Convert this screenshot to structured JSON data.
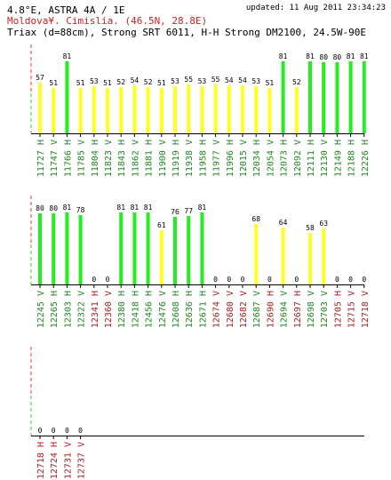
{
  "header": {
    "title": "4.8°E, ASTRA 4A / 1E",
    "updated": "updated: 11 Aug 2011 23:34:23",
    "location": "Moldova¥. Cimislia.  (46.5N, 28.8E)",
    "setup": "Triax (d=88cm), Strong SRT 6011, H-H Strong DM2100, 24.5W-90E"
  },
  "colors": {
    "green": "#22ee22",
    "yellow": "#ffff22",
    "label_green": "#228822",
    "label_red": "#aa2222",
    "value_text": "#000000",
    "axis": "#000000",
    "dash_red": "#ff3333",
    "dash_green": "#33cc33"
  },
  "chart_data": [
    {
      "type": "bar",
      "ylim": [
        0,
        100
      ],
      "bars": [
        {
          "freq": "11727",
          "pol": "H",
          "value": 57,
          "color": "yellow",
          "label_color": "green"
        },
        {
          "freq": "11747",
          "pol": "V",
          "value": 51,
          "color": "yellow",
          "label_color": "green"
        },
        {
          "freq": "11766",
          "pol": "H",
          "value": 81,
          "color": "green",
          "label_color": "green"
        },
        {
          "freq": "11785",
          "pol": "V",
          "value": 51,
          "color": "yellow",
          "label_color": "green"
        },
        {
          "freq": "11804",
          "pol": "H",
          "value": 53,
          "color": "yellow",
          "label_color": "green"
        },
        {
          "freq": "11823",
          "pol": "V",
          "value": 51,
          "color": "yellow",
          "label_color": "green"
        },
        {
          "freq": "11843",
          "pol": "H",
          "value": 52,
          "color": "yellow",
          "label_color": "green"
        },
        {
          "freq": "11862",
          "pol": "V",
          "value": 54,
          "color": "yellow",
          "label_color": "green"
        },
        {
          "freq": "11881",
          "pol": "H",
          "value": 52,
          "color": "yellow",
          "label_color": "green"
        },
        {
          "freq": "11900",
          "pol": "V",
          "value": 51,
          "color": "yellow",
          "label_color": "green"
        },
        {
          "freq": "11919",
          "pol": "H",
          "value": 53,
          "color": "yellow",
          "label_color": "green"
        },
        {
          "freq": "11938",
          "pol": "V",
          "value": 55,
          "color": "yellow",
          "label_color": "green"
        },
        {
          "freq": "11958",
          "pol": "H",
          "value": 53,
          "color": "yellow",
          "label_color": "green"
        },
        {
          "freq": "11977",
          "pol": "V",
          "value": 55,
          "color": "yellow",
          "label_color": "green"
        },
        {
          "freq": "11996",
          "pol": "H",
          "value": 54,
          "color": "yellow",
          "label_color": "green"
        },
        {
          "freq": "12015",
          "pol": "V",
          "value": 54,
          "color": "yellow",
          "label_color": "green"
        },
        {
          "freq": "12034",
          "pol": "H",
          "value": 53,
          "color": "yellow",
          "label_color": "green"
        },
        {
          "freq": "12054",
          "pol": "V",
          "value": 51,
          "color": "yellow",
          "label_color": "green"
        },
        {
          "freq": "12073",
          "pol": "H",
          "value": 81,
          "color": "green",
          "label_color": "green"
        },
        {
          "freq": "12092",
          "pol": "V",
          "value": 52,
          "color": "yellow",
          "label_color": "green"
        },
        {
          "freq": "12111",
          "pol": "H",
          "value": 81,
          "color": "green",
          "label_color": "green"
        },
        {
          "freq": "12130",
          "pol": "V",
          "value": 80,
          "color": "green",
          "label_color": "green"
        },
        {
          "freq": "12149",
          "pol": "H",
          "value": 80,
          "color": "green",
          "label_color": "green"
        },
        {
          "freq": "12188",
          "pol": "H",
          "value": 81,
          "color": "green",
          "label_color": "green"
        },
        {
          "freq": "12226",
          "pol": "H",
          "value": 81,
          "color": "green",
          "label_color": "green"
        }
      ]
    },
    {
      "type": "bar",
      "ylim": [
        0,
        100
      ],
      "bars": [
        {
          "freq": "12245",
          "pol": "V",
          "value": 80,
          "color": "green",
          "label_color": "green"
        },
        {
          "freq": "12265",
          "pol": "H",
          "value": 80,
          "color": "green",
          "label_color": "green"
        },
        {
          "freq": "12303",
          "pol": "H",
          "value": 81,
          "color": "green",
          "label_color": "green"
        },
        {
          "freq": "12322",
          "pol": "V",
          "value": 78,
          "color": "green",
          "label_color": "green"
        },
        {
          "freq": "12341",
          "pol": "H",
          "value": 0,
          "color": "green",
          "label_color": "red"
        },
        {
          "freq": "12360",
          "pol": "V",
          "value": 0,
          "color": "green",
          "label_color": "red"
        },
        {
          "freq": "12380",
          "pol": "H",
          "value": 81,
          "color": "green",
          "label_color": "green"
        },
        {
          "freq": "12418",
          "pol": "H",
          "value": 81,
          "color": "green",
          "label_color": "green"
        },
        {
          "freq": "12456",
          "pol": "H",
          "value": 81,
          "color": "green",
          "label_color": "green"
        },
        {
          "freq": "12476",
          "pol": "V",
          "value": 61,
          "color": "yellow",
          "label_color": "green"
        },
        {
          "freq": "12608",
          "pol": "H",
          "value": 76,
          "color": "green",
          "label_color": "green"
        },
        {
          "freq": "12636",
          "pol": "H",
          "value": 77,
          "color": "green",
          "label_color": "green"
        },
        {
          "freq": "12671",
          "pol": "H",
          "value": 81,
          "color": "green",
          "label_color": "green"
        },
        {
          "freq": "12674",
          "pol": "V",
          "value": 0,
          "color": "green",
          "label_color": "red"
        },
        {
          "freq": "12680",
          "pol": "V",
          "value": 0,
          "color": "green",
          "label_color": "red"
        },
        {
          "freq": "12682",
          "pol": "V",
          "value": 0,
          "color": "green",
          "label_color": "red"
        },
        {
          "freq": "12687",
          "pol": "V",
          "value": 68,
          "color": "yellow",
          "label_color": "green"
        },
        {
          "freq": "12690",
          "pol": "H",
          "value": 0,
          "color": "green",
          "label_color": "red"
        },
        {
          "freq": "12694",
          "pol": "V",
          "value": 64,
          "color": "yellow",
          "label_color": "green"
        },
        {
          "freq": "12697",
          "pol": "H",
          "value": 0,
          "color": "green",
          "label_color": "red"
        },
        {
          "freq": "12698",
          "pol": "V",
          "value": 58,
          "color": "yellow",
          "label_color": "green"
        },
        {
          "freq": "12703",
          "pol": "V",
          "value": 63,
          "color": "yellow",
          "label_color": "green"
        },
        {
          "freq": "12705",
          "pol": "H",
          "value": 0,
          "color": "green",
          "label_color": "red"
        },
        {
          "freq": "12715",
          "pol": "V",
          "value": 0,
          "color": "green",
          "label_color": "red"
        },
        {
          "freq": "12718",
          "pol": "V",
          "value": 0,
          "color": "green",
          "label_color": "red"
        }
      ]
    },
    {
      "type": "bar",
      "ylim": [
        0,
        100
      ],
      "bars": [
        {
          "freq": "12718",
          "pol": "H",
          "value": 0,
          "color": "green",
          "label_color": "red"
        },
        {
          "freq": "12724",
          "pol": "H",
          "value": 0,
          "color": "green",
          "label_color": "red"
        },
        {
          "freq": "12731",
          "pol": "V",
          "value": 0,
          "color": "green",
          "label_color": "red"
        },
        {
          "freq": "12737",
          "pol": "V",
          "value": 0,
          "color": "green",
          "label_color": "red"
        }
      ]
    }
  ]
}
